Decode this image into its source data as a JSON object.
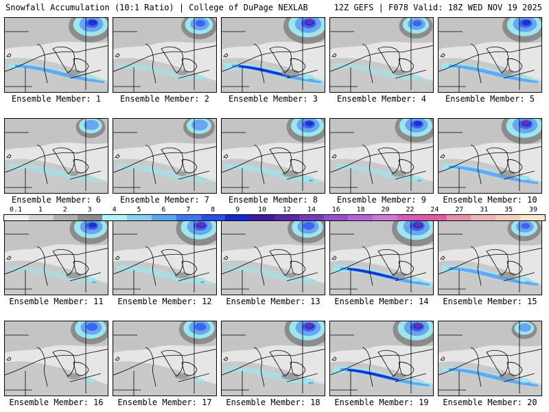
{
  "header": {
    "title_left": "Snowfall Accumulation (10:1 Ratio) | College of DuPage NEXLAB",
    "title_right": "12Z GEFS | F078 Valid: 18Z WED NOV 19 2025"
  },
  "members": [
    {
      "label": "Ensemble Member: 1",
      "north": 0.8,
      "band": 0.45,
      "lake": 0.35
    },
    {
      "label": "Ensemble Member: 2",
      "north": 0.6,
      "band": 0.1,
      "lake": 0.25
    },
    {
      "label": "Ensemble Member: 3",
      "north": 0.9,
      "band": 0.85,
      "lake": 0.5
    },
    {
      "label": "Ensemble Member: 4",
      "north": 0.55,
      "band": 0.15,
      "lake": 0.3
    },
    {
      "label": "Ensemble Member: 5",
      "north": 0.8,
      "band": 0.55,
      "lake": 0.3
    },
    {
      "label": "Ensemble Member: 6",
      "north": 0.45,
      "band": 0.2,
      "lake": 0.2
    },
    {
      "label": "Ensemble Member: 7",
      "north": 0.5,
      "band": 0.2,
      "lake": 0.2
    },
    {
      "label": "Ensemble Member: 8",
      "north": 0.75,
      "band": 0.3,
      "lake": 0.45
    },
    {
      "label": "Ensemble Member: 9",
      "north": 0.75,
      "band": 0.15,
      "lake": 0.4
    },
    {
      "label": "Ensemble Member: 10",
      "north": 0.85,
      "band": 0.5,
      "lake": 0.45
    },
    {
      "label": "Ensemble Member: 11",
      "north": 0.75,
      "band": 0.1,
      "lake": 0.4
    },
    {
      "label": "Ensemble Member: 12",
      "north": 0.85,
      "band": 0.3,
      "lake": 0.4
    },
    {
      "label": "Ensemble Member: 13",
      "north": 0.7,
      "band": 0.15,
      "lake": 0.25
    },
    {
      "label": "Ensemble Member: 14",
      "north": 0.9,
      "band": 0.8,
      "lake": 0.4
    },
    {
      "label": "Ensemble Member: 15",
      "north": 0.55,
      "band": 0.55,
      "lake": 0.5
    },
    {
      "label": "Ensemble Member: 16",
      "north": 0.7,
      "band": 0.05,
      "lake": 0.35
    },
    {
      "label": "Ensemble Member: 17",
      "north": 0.7,
      "band": 0.05,
      "lake": 0.35
    },
    {
      "label": "Ensemble Member: 18",
      "north": 0.85,
      "band": 0.2,
      "lake": 0.5
    },
    {
      "label": "Ensemble Member: 19",
      "north": 0.85,
      "band": 0.75,
      "lake": 0.35
    },
    {
      "label": "Ensemble Member: 20",
      "north": 0.35,
      "band": 0.4,
      "lake": 0.45
    }
  ],
  "colorbar": {
    "labels": [
      "0.1",
      "1",
      "2",
      "3",
      "4",
      "5",
      "6",
      "7",
      "8",
      "9",
      "10",
      "12",
      "14",
      "16",
      "18",
      "20",
      "22",
      "24",
      "27",
      "31",
      "35",
      "39"
    ],
    "colors": [
      "#f0f0f0",
      "#d4d4d4",
      "#b0b0b0",
      "#8c8c8c",
      "#aef0f4",
      "#88d0f0",
      "#5aa8f0",
      "#3c78f0",
      "#2850e8",
      "#1428d0",
      "#3c1c9c",
      "#5a28a8",
      "#783cb8",
      "#9650c8",
      "#b464d4",
      "#d278dc",
      "#dc5ab4",
      "#e05aa0",
      "#e890a8",
      "#f0b4b4",
      "#f4ccbc",
      "#f8e4cc"
    ],
    "scale_colors": {
      "trace": "#e6e6e6",
      "light": "#bcbcbc",
      "mid": "#8c8c8c",
      "cyan": "#9ee6ee",
      "blue1": "#6aa6f0",
      "blue2": "#3c64ee",
      "blue3": "#2030cc",
      "purple": "#7a2aa8",
      "magenta": "#c0409c"
    }
  }
}
